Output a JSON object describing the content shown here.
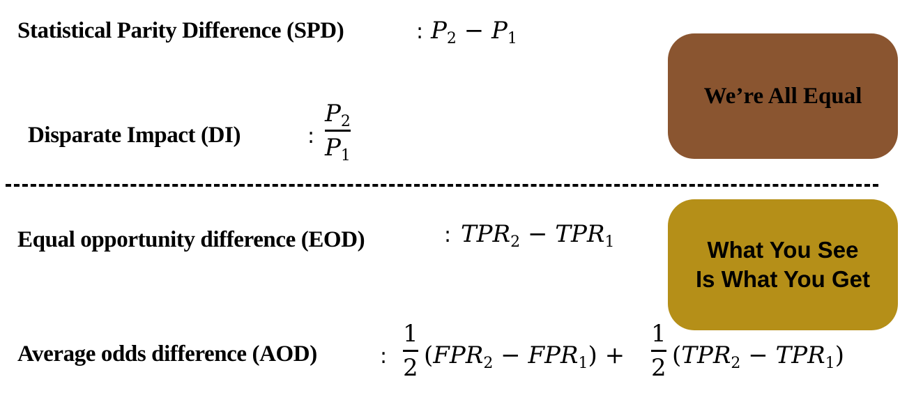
{
  "metrics": {
    "spd": {
      "label": "Statistical Parity Difference (SPD)",
      "formula": {
        "colon": ":",
        "a": "P",
        "a_sub": "2",
        "op": "−",
        "b": "P",
        "b_sub": "1"
      }
    },
    "di": {
      "label": "Disparate Impact (DI)",
      "formula": {
        "colon": ":",
        "num": "P",
        "num_sub": "2",
        "den": "P",
        "den_sub": "1"
      }
    },
    "eod": {
      "label": "Equal opportunity difference (EOD)",
      "formula": {
        "colon": ":",
        "a": "TPR",
        "a_sub": "2",
        "op": "−",
        "b": "TPR",
        "b_sub": "1"
      }
    },
    "aod": {
      "label": "Average odds difference (AOD)",
      "formula": {
        "colon": ":",
        "frac_num": "1",
        "frac_den": "2",
        "open": "(",
        "close": ")",
        "op_minus": "−",
        "op_plus": "+",
        "fpr": "FPR",
        "tpr": "TPR",
        "sub2": "2",
        "sub1": "1"
      }
    }
  },
  "boxes": {
    "top": {
      "text": "We’re All Equal",
      "color": "#8a5530"
    },
    "bottom": {
      "line1": "What You See",
      "line2": "Is What You Get",
      "color": "#b58f18"
    }
  }
}
